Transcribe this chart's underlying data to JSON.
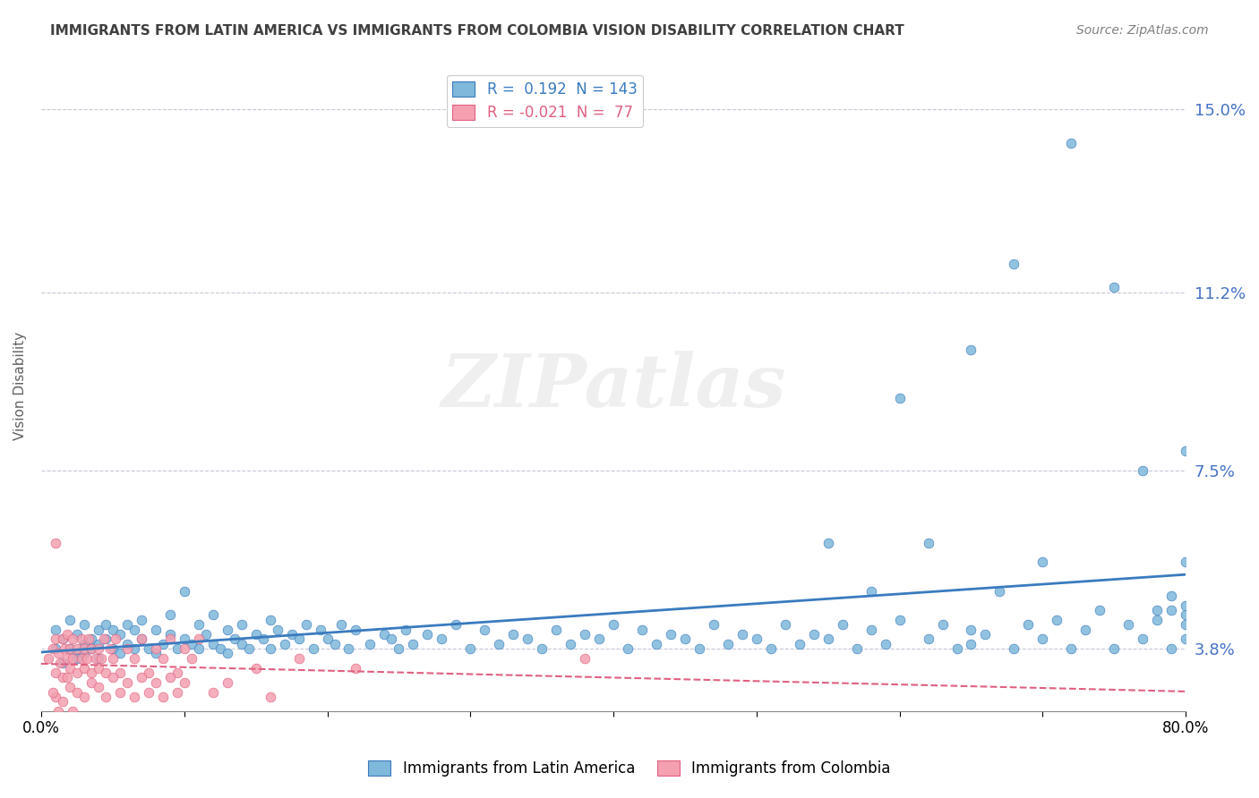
{
  "title": "IMMIGRANTS FROM LATIN AMERICA VS IMMIGRANTS FROM COLOMBIA VISION DISABILITY CORRELATION CHART",
  "source": "Source: ZipAtlas.com",
  "xlabel": "",
  "ylabel": "Vision Disability",
  "xlim": [
    0.0,
    0.8
  ],
  "ylim": [
    0.025,
    0.16
  ],
  "yticks": [
    0.038,
    0.075,
    0.112,
    0.15
  ],
  "ytick_labels": [
    "3.8%",
    "7.5%",
    "11.2%",
    "15.0%"
  ],
  "xticks": [
    0.0,
    0.1,
    0.2,
    0.3,
    0.4,
    0.5,
    0.6,
    0.7,
    0.8
  ],
  "xtick_labels": [
    "0.0%",
    "",
    "",
    "",
    "",
    "",
    "",
    "",
    "80.0%"
  ],
  "blue_color": "#7EB8DA",
  "pink_color": "#F4A0B0",
  "blue_line_color": "#3A7BBF",
  "pink_line_color": "#E06080",
  "r_blue": 0.192,
  "n_blue": 143,
  "r_pink": -0.021,
  "n_pink": 77,
  "legend_label_blue": "Immigrants from Latin America",
  "legend_label_pink": "Immigrants from Colombia",
  "watermark": "ZIPatlas",
  "blue_scatter_x": [
    0.01,
    0.01,
    0.015,
    0.015,
    0.02,
    0.02,
    0.025,
    0.025,
    0.025,
    0.03,
    0.03,
    0.03,
    0.035,
    0.035,
    0.04,
    0.04,
    0.04,
    0.045,
    0.045,
    0.05,
    0.05,
    0.055,
    0.055,
    0.06,
    0.06,
    0.065,
    0.065,
    0.07,
    0.07,
    0.075,
    0.08,
    0.08,
    0.085,
    0.09,
    0.09,
    0.095,
    0.1,
    0.1,
    0.105,
    0.11,
    0.11,
    0.115,
    0.12,
    0.12,
    0.125,
    0.13,
    0.13,
    0.135,
    0.14,
    0.14,
    0.145,
    0.15,
    0.155,
    0.16,
    0.16,
    0.165,
    0.17,
    0.175,
    0.18,
    0.185,
    0.19,
    0.195,
    0.2,
    0.205,
    0.21,
    0.215,
    0.22,
    0.23,
    0.24,
    0.245,
    0.25,
    0.255,
    0.26,
    0.27,
    0.28,
    0.29,
    0.3,
    0.31,
    0.32,
    0.33,
    0.34,
    0.35,
    0.36,
    0.37,
    0.38,
    0.39,
    0.4,
    0.41,
    0.42,
    0.43,
    0.44,
    0.45,
    0.46,
    0.47,
    0.48,
    0.49,
    0.5,
    0.51,
    0.52,
    0.53,
    0.54,
    0.55,
    0.56,
    0.57,
    0.58,
    0.59,
    0.6,
    0.62,
    0.63,
    0.64,
    0.65,
    0.65,
    0.66,
    0.67,
    0.68,
    0.69,
    0.7,
    0.71,
    0.72,
    0.73,
    0.74,
    0.75,
    0.76,
    0.77,
    0.78,
    0.79,
    0.79,
    0.8,
    0.8,
    0.8,
    0.8,
    0.77,
    0.6,
    0.55,
    0.75,
    0.65,
    0.72,
    0.68,
    0.8,
    0.78,
    0.7,
    0.62,
    0.58,
    0.8,
    0.79
  ],
  "blue_scatter_y": [
    0.038,
    0.042,
    0.035,
    0.04,
    0.038,
    0.044,
    0.037,
    0.041,
    0.036,
    0.039,
    0.043,
    0.037,
    0.04,
    0.038,
    0.042,
    0.036,
    0.039,
    0.04,
    0.043,
    0.038,
    0.042,
    0.037,
    0.041,
    0.039,
    0.043,
    0.038,
    0.042,
    0.04,
    0.044,
    0.038,
    0.042,
    0.037,
    0.039,
    0.041,
    0.045,
    0.038,
    0.04,
    0.05,
    0.039,
    0.043,
    0.038,
    0.041,
    0.039,
    0.045,
    0.038,
    0.042,
    0.037,
    0.04,
    0.039,
    0.043,
    0.038,
    0.041,
    0.04,
    0.044,
    0.038,
    0.042,
    0.039,
    0.041,
    0.04,
    0.043,
    0.038,
    0.042,
    0.04,
    0.039,
    0.043,
    0.038,
    0.042,
    0.039,
    0.041,
    0.04,
    0.038,
    0.042,
    0.039,
    0.041,
    0.04,
    0.043,
    0.038,
    0.042,
    0.039,
    0.041,
    0.04,
    0.038,
    0.042,
    0.039,
    0.041,
    0.04,
    0.043,
    0.038,
    0.042,
    0.039,
    0.041,
    0.04,
    0.038,
    0.043,
    0.039,
    0.041,
    0.04,
    0.038,
    0.043,
    0.039,
    0.041,
    0.04,
    0.043,
    0.038,
    0.042,
    0.039,
    0.044,
    0.04,
    0.043,
    0.038,
    0.042,
    0.039,
    0.041,
    0.05,
    0.038,
    0.043,
    0.04,
    0.044,
    0.038,
    0.042,
    0.046,
    0.038,
    0.043,
    0.04,
    0.044,
    0.038,
    0.049,
    0.043,
    0.04,
    0.045,
    0.056,
    0.075,
    0.09,
    0.06,
    0.113,
    0.1,
    0.143,
    0.118,
    0.079,
    0.046,
    0.056,
    0.06,
    0.05,
    0.047,
    0.046
  ],
  "pink_scatter_x": [
    0.005,
    0.008,
    0.01,
    0.01,
    0.012,
    0.013,
    0.015,
    0.015,
    0.016,
    0.018,
    0.018,
    0.02,
    0.02,
    0.022,
    0.022,
    0.025,
    0.025,
    0.028,
    0.028,
    0.03,
    0.03,
    0.032,
    0.033,
    0.035,
    0.035,
    0.038,
    0.04,
    0.04,
    0.042,
    0.044,
    0.045,
    0.048,
    0.05,
    0.052,
    0.055,
    0.06,
    0.065,
    0.07,
    0.075,
    0.08,
    0.085,
    0.09,
    0.095,
    0.1,
    0.105,
    0.11,
    0.15,
    0.18,
    0.22,
    0.38,
    0.01,
    0.015,
    0.02,
    0.012,
    0.008,
    0.018,
    0.022,
    0.025,
    0.03,
    0.035,
    0.04,
    0.045,
    0.05,
    0.055,
    0.06,
    0.065,
    0.07,
    0.075,
    0.08,
    0.085,
    0.09,
    0.095,
    0.1,
    0.12,
    0.13,
    0.16,
    0.01
  ],
  "pink_scatter_y": [
    0.036,
    0.038,
    0.033,
    0.04,
    0.037,
    0.035,
    0.04,
    0.032,
    0.038,
    0.036,
    0.041,
    0.034,
    0.038,
    0.036,
    0.04,
    0.033,
    0.038,
    0.036,
    0.04,
    0.034,
    0.038,
    0.036,
    0.04,
    0.033,
    0.038,
    0.036,
    0.034,
    0.038,
    0.036,
    0.04,
    0.033,
    0.038,
    0.036,
    0.04,
    0.033,
    0.038,
    0.036,
    0.04,
    0.033,
    0.038,
    0.036,
    0.04,
    0.033,
    0.038,
    0.036,
    0.04,
    0.034,
    0.036,
    0.034,
    0.036,
    0.028,
    0.027,
    0.03,
    0.025,
    0.029,
    0.032,
    0.025,
    0.029,
    0.028,
    0.031,
    0.03,
    0.028,
    0.032,
    0.029,
    0.031,
    0.028,
    0.032,
    0.029,
    0.031,
    0.028,
    0.032,
    0.029,
    0.031,
    0.029,
    0.031,
    0.028,
    0.06
  ],
  "grid_color": "#C8C8D8",
  "tick_label_color_right": "#4472C4",
  "title_color": "#404040",
  "source_color": "#808080"
}
